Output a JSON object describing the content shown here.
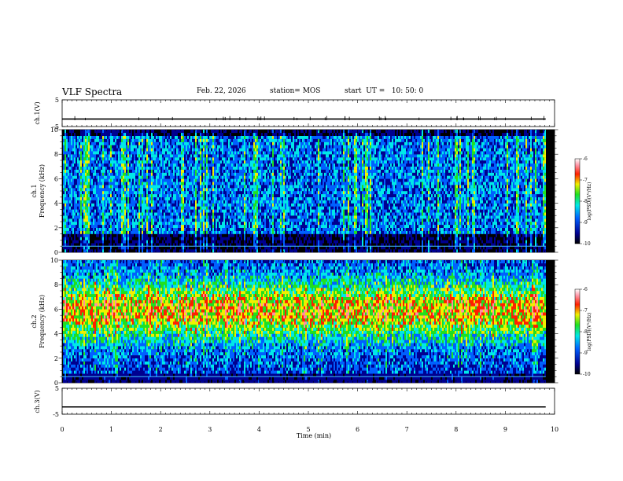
{
  "header": {
    "title": "VLF Spectra",
    "date": "Feb. 22, 2026",
    "station": "station= MOS",
    "start": "start  UT =   10: 50: 0"
  },
  "chart_data": [
    {
      "type": "line",
      "name": "ch.1 waveform",
      "ylabel": "ch.1(V)",
      "ylim": [
        -5,
        5
      ],
      "y_ticks": [
        "5",
        "-5"
      ],
      "baseline": -2.2,
      "x_range_min": [
        0,
        9.82
      ]
    },
    {
      "type": "heatmap",
      "name": "ch.1 spectrogram",
      "ylabel": "ch.1 Frequency (kHz)",
      "ylabel_channel": "ch.1",
      "ylabel_freq": "Frequency (kHz)",
      "ylim": [
        0,
        10
      ],
      "y_ticks": [
        "0",
        "2",
        "4",
        "6",
        "8",
        "10"
      ],
      "time_range_min": [
        0,
        9.82
      ],
      "colorbar": {
        "label": "log(PSD)(V²/Hz)",
        "range": [
          -10,
          -6
        ],
        "ticks": [
          "-6",
          "-7",
          "-8",
          "-9",
          "-10"
        ]
      }
    },
    {
      "type": "heatmap",
      "name": "ch.2 spectrogram",
      "ylabel": "ch.2 Frequency (kHz)",
      "ylabel_channel": "ch.2",
      "ylabel_freq": "Frequency (kHz)",
      "ylim": [
        0,
        10
      ],
      "y_ticks": [
        "0",
        "2",
        "4",
        "6",
        "8",
        "10"
      ],
      "time_range_min": [
        0,
        9.82
      ],
      "colorbar": {
        "label": "log(PSD)(V²/Hz)",
        "range": [
          -10,
          -6
        ],
        "ticks": [
          "-6",
          "-7",
          "-8",
          "-9",
          "-10"
        ]
      }
    },
    {
      "type": "line",
      "name": "ch.3 waveform",
      "ylabel": "ch.3(V)",
      "ylim": [
        -5,
        5
      ],
      "y_ticks": [
        "5",
        "-5"
      ],
      "baseline": -2.2,
      "x_range_min": [
        0,
        9.82
      ]
    }
  ],
  "x_axis": {
    "label": "Time  (min)",
    "range": [
      0,
      10
    ],
    "ticks": [
      "0",
      "1",
      "2",
      "3",
      "4",
      "5",
      "6",
      "7",
      "8",
      "9",
      "10"
    ]
  }
}
